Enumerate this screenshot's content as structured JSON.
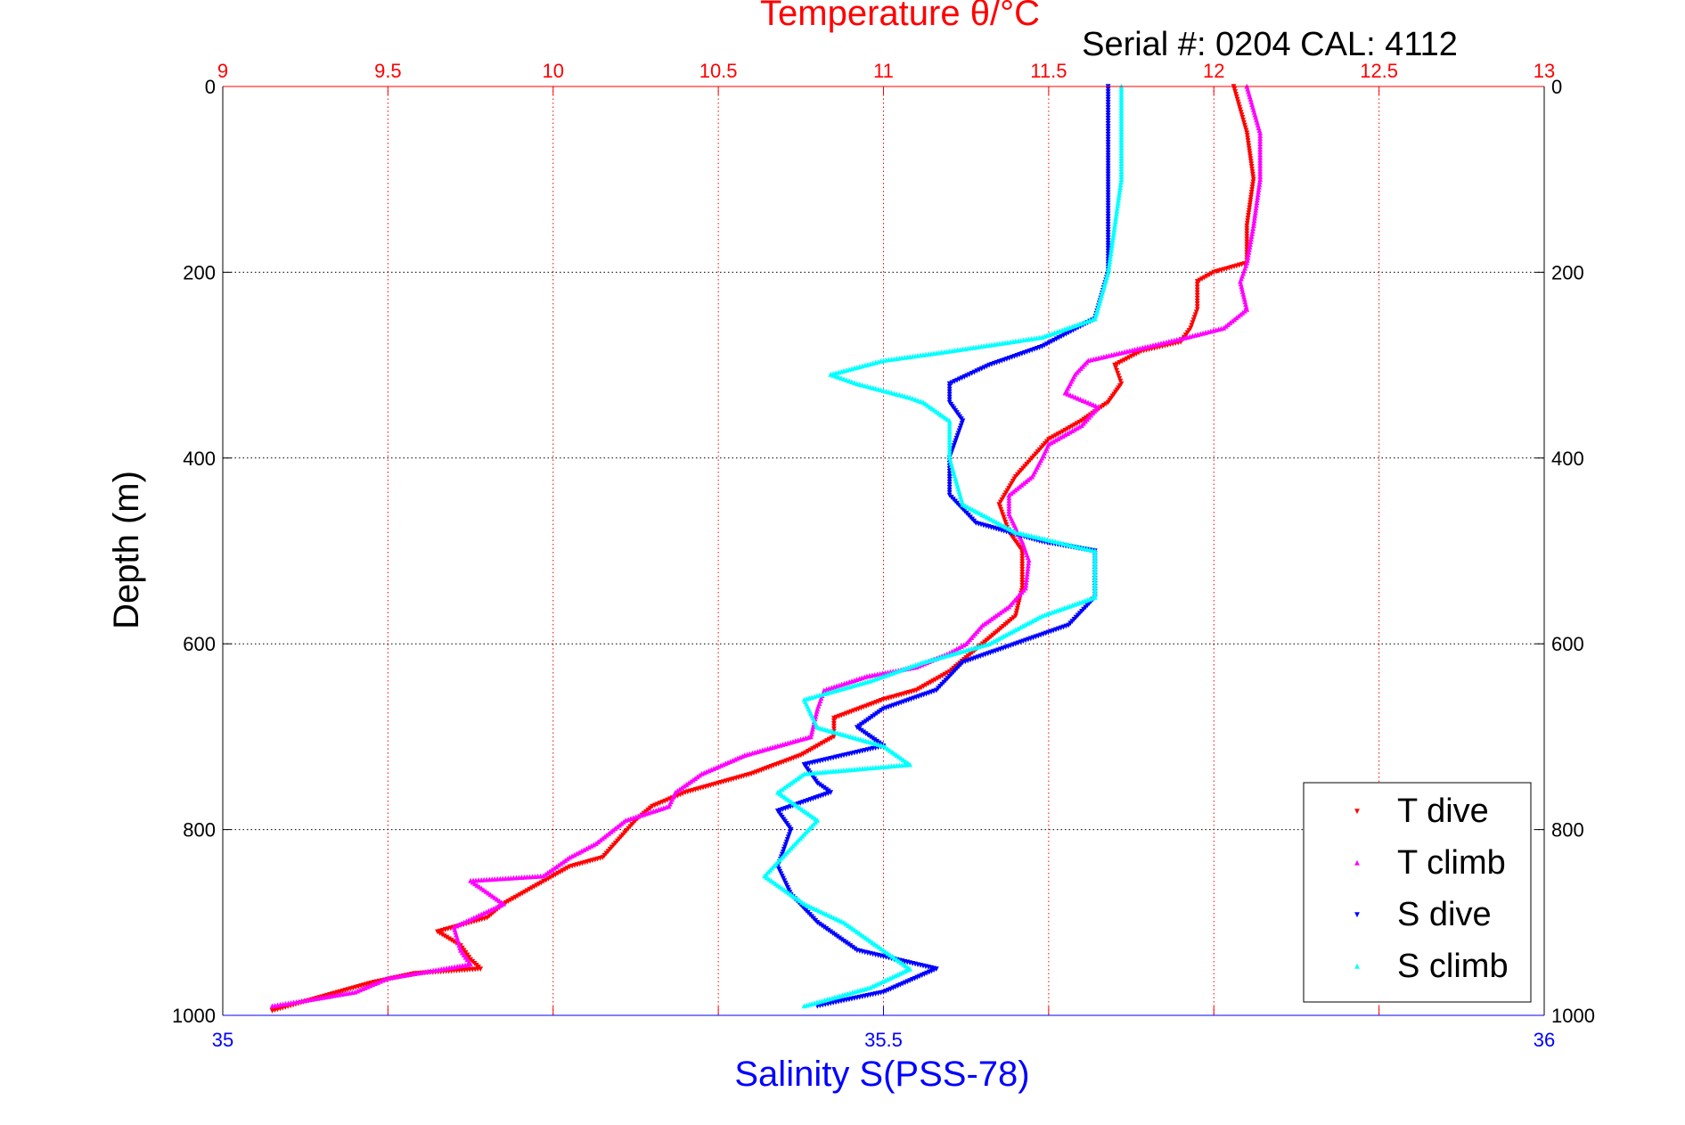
{
  "chart_data": {
    "type": "scatter",
    "title": "Temperature θ/°C",
    "subtitle": "Serial #: 0204  CAL: 4112",
    "ylabel": "Depth (m)",
    "xlabel_bottom": "Salinity S(PSS-78)",
    "ylim": [
      0,
      1000
    ],
    "y_ticks": [
      "0",
      "200",
      "400",
      "600",
      "800",
      "1000"
    ],
    "top_axis": {
      "lim": [
        9,
        13
      ],
      "ticks": [
        "9",
        "9.5",
        "10",
        "10.5",
        "11",
        "11.5",
        "12",
        "12.5",
        "13"
      ],
      "color": "#ff0000"
    },
    "bottom_axis": {
      "lim": [
        35,
        36
      ],
      "ticks": [
        "35",
        "35.5",
        "36"
      ],
      "color": "#0000ff"
    },
    "grid": true,
    "legend_position": "bottom-right",
    "series": [
      {
        "name": "T dive",
        "axis": "top",
        "color": "#ff0000",
        "points": [
          [
            12.06,
            0
          ],
          [
            12.1,
            50
          ],
          [
            12.12,
            100
          ],
          [
            12.1,
            150
          ],
          [
            12.1,
            190
          ],
          [
            12.0,
            200
          ],
          [
            11.95,
            210
          ],
          [
            11.95,
            240
          ],
          [
            11.93,
            260
          ],
          [
            11.9,
            275
          ],
          [
            11.78,
            285
          ],
          [
            11.7,
            300
          ],
          [
            11.72,
            320
          ],
          [
            11.68,
            340
          ],
          [
            11.6,
            360
          ],
          [
            11.5,
            380
          ],
          [
            11.45,
            400
          ],
          [
            11.4,
            420
          ],
          [
            11.35,
            450
          ],
          [
            11.38,
            480
          ],
          [
            11.42,
            500
          ],
          [
            11.42,
            540
          ],
          [
            11.4,
            570
          ],
          [
            11.3,
            600
          ],
          [
            11.2,
            630
          ],
          [
            11.1,
            650
          ],
          [
            11.0,
            660
          ],
          [
            10.85,
            680
          ],
          [
            10.85,
            700
          ],
          [
            10.75,
            720
          ],
          [
            10.6,
            740
          ],
          [
            10.4,
            760
          ],
          [
            10.3,
            775
          ],
          [
            10.25,
            790
          ],
          [
            10.2,
            810
          ],
          [
            10.15,
            830
          ],
          [
            10.05,
            840
          ],
          [
            10.0,
            850
          ],
          [
            9.9,
            870
          ],
          [
            9.85,
            880
          ],
          [
            9.8,
            895
          ],
          [
            9.65,
            910
          ],
          [
            9.72,
            925
          ],
          [
            9.75,
            940
          ],
          [
            9.78,
            950
          ],
          [
            9.58,
            955
          ],
          [
            9.45,
            965
          ],
          [
            9.3,
            980
          ],
          [
            9.15,
            995
          ]
        ]
      },
      {
        "name": "T climb",
        "axis": "top",
        "color": "#ff00ff",
        "points": [
          [
            12.1,
            0
          ],
          [
            12.14,
            50
          ],
          [
            12.14,
            100
          ],
          [
            12.12,
            150
          ],
          [
            12.1,
            190
          ],
          [
            12.08,
            210
          ],
          [
            12.1,
            240
          ],
          [
            12.03,
            260
          ],
          [
            11.92,
            270
          ],
          [
            11.8,
            280
          ],
          [
            11.62,
            295
          ],
          [
            11.58,
            310
          ],
          [
            11.55,
            330
          ],
          [
            11.65,
            345
          ],
          [
            11.6,
            365
          ],
          [
            11.5,
            385
          ],
          [
            11.48,
            400
          ],
          [
            11.45,
            420
          ],
          [
            11.38,
            440
          ],
          [
            11.38,
            460
          ],
          [
            11.42,
            490
          ],
          [
            11.44,
            510
          ],
          [
            11.43,
            540
          ],
          [
            11.38,
            560
          ],
          [
            11.3,
            580
          ],
          [
            11.25,
            600
          ],
          [
            11.2,
            610
          ],
          [
            11.1,
            625
          ],
          [
            10.95,
            635
          ],
          [
            10.82,
            650
          ],
          [
            10.8,
            670
          ],
          [
            10.78,
            700
          ],
          [
            10.58,
            720
          ],
          [
            10.45,
            740
          ],
          [
            10.37,
            760
          ],
          [
            10.35,
            775
          ],
          [
            10.22,
            790
          ],
          [
            10.13,
            815
          ],
          [
            10.05,
            830
          ],
          [
            9.97,
            850
          ],
          [
            9.75,
            855
          ],
          [
            9.85,
            880
          ],
          [
            9.7,
            905
          ],
          [
            9.72,
            930
          ],
          [
            9.75,
            945
          ],
          [
            9.5,
            960
          ],
          [
            9.4,
            975
          ],
          [
            9.15,
            990
          ]
        ]
      },
      {
        "name": "S dive",
        "axis": "bottom",
        "color": "#0000ff",
        "points": [
          [
            35.67,
            0
          ],
          [
            35.67,
            100
          ],
          [
            35.67,
            200
          ],
          [
            35.66,
            250
          ],
          [
            35.62,
            280
          ],
          [
            35.58,
            300
          ],
          [
            35.55,
            320
          ],
          [
            35.55,
            340
          ],
          [
            35.56,
            360
          ],
          [
            35.55,
            400
          ],
          [
            35.55,
            440
          ],
          [
            35.57,
            470
          ],
          [
            35.62,
            490
          ],
          [
            35.66,
            500
          ],
          [
            35.66,
            550
          ],
          [
            35.64,
            580
          ],
          [
            35.6,
            600
          ],
          [
            35.56,
            620
          ],
          [
            35.54,
            650
          ],
          [
            35.5,
            670
          ],
          [
            35.48,
            690
          ],
          [
            35.5,
            710
          ],
          [
            35.44,
            730
          ],
          [
            35.45,
            750
          ],
          [
            35.46,
            760
          ],
          [
            35.42,
            780
          ],
          [
            35.43,
            800
          ],
          [
            35.42,
            840
          ],
          [
            35.43,
            870
          ],
          [
            35.45,
            900
          ],
          [
            35.48,
            930
          ],
          [
            35.54,
            950
          ],
          [
            35.5,
            975
          ],
          [
            35.45,
            990
          ]
        ]
      },
      {
        "name": "S climb",
        "axis": "bottom",
        "color": "#00ffff",
        "points": [
          [
            35.68,
            0
          ],
          [
            35.68,
            100
          ],
          [
            35.67,
            200
          ],
          [
            35.66,
            250
          ],
          [
            35.62,
            270
          ],
          [
            35.55,
            285
          ],
          [
            35.5,
            295
          ],
          [
            35.46,
            310
          ],
          [
            35.48,
            320
          ],
          [
            35.52,
            335
          ],
          [
            35.53,
            340
          ],
          [
            35.55,
            360
          ],
          [
            35.55,
            400
          ],
          [
            35.56,
            450
          ],
          [
            35.6,
            480
          ],
          [
            35.66,
            500
          ],
          [
            35.66,
            550
          ],
          [
            35.62,
            570
          ],
          [
            35.58,
            600
          ],
          [
            35.53,
            620
          ],
          [
            35.49,
            640
          ],
          [
            35.44,
            660
          ],
          [
            35.45,
            690
          ],
          [
            35.5,
            710
          ],
          [
            35.52,
            730
          ],
          [
            35.44,
            740
          ],
          [
            35.42,
            760
          ],
          [
            35.45,
            790
          ],
          [
            35.43,
            820
          ],
          [
            35.41,
            850
          ],
          [
            35.44,
            880
          ],
          [
            35.47,
            900
          ],
          [
            35.5,
            930
          ],
          [
            35.52,
            950
          ],
          [
            35.49,
            970
          ],
          [
            35.44,
            990
          ]
        ]
      }
    ]
  }
}
